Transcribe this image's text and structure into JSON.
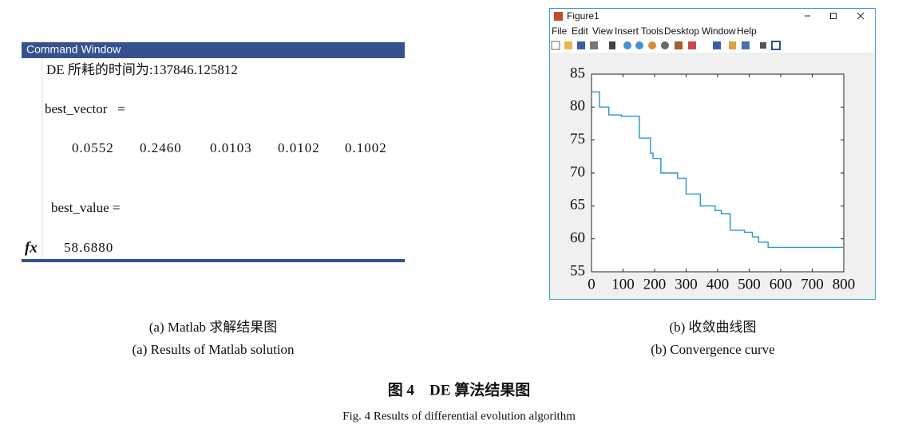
{
  "command_window": {
    "title": "Command Window",
    "time_line": "DE 所耗的时间为:137846.125812",
    "vector_label": "best_vector   =",
    "vector": [
      "0.0552",
      "0.2460",
      "0.0103",
      "0.0102",
      "0.1002"
    ],
    "value_label": "best_value =",
    "value": "58.6880",
    "prompt": "fx"
  },
  "figure_window": {
    "title": "Figure1",
    "menu": [
      "File",
      "Edit",
      "View",
      "Insert",
      "Tools",
      "Desktop",
      "Window",
      "Help"
    ]
  },
  "chart_data": {
    "type": "line",
    "x": [
      0,
      25,
      25,
      55,
      55,
      95,
      95,
      152,
      152,
      187,
      187,
      195,
      195,
      220,
      220,
      273,
      273,
      300,
      300,
      345,
      345,
      392,
      392,
      412,
      412,
      440,
      440,
      485,
      485,
      510,
      510,
      530,
      530,
      560,
      560,
      800
    ],
    "series": [
      {
        "color": "#2a93d0",
        "values": [
          82.3,
          82.3,
          80,
          80,
          78.8,
          78.8,
          78.6,
          78.6,
          75.3,
          75.3,
          73,
          73,
          72.2,
          72.2,
          70,
          70,
          69.2,
          69.2,
          66.8,
          66.8,
          65,
          65,
          64.3,
          64.3,
          63.8,
          63.8,
          61.3,
          61.3,
          61,
          61,
          60.3,
          60.3,
          59.5,
          59.5,
          58.7,
          58.7
        ]
      }
    ],
    "xlim": [
      0,
      800
    ],
    "ylim": [
      55,
      85
    ],
    "xticks": [
      0,
      100,
      200,
      300,
      400,
      500,
      600,
      700,
      800
    ],
    "yticks": [
      55,
      60,
      65,
      70,
      75,
      80,
      85
    ]
  },
  "captions": {
    "a_cn": "(a) Matlab 求解结果图",
    "a_en": "(a) Results of Matlab solution",
    "b_cn": "(b) 收敛曲线图",
    "b_en": "(b) Convergence curve",
    "figure_cn": "图 4　DE 算法结果图",
    "figure_en": "Fig. 4 Results of differential evolution algorithm"
  }
}
